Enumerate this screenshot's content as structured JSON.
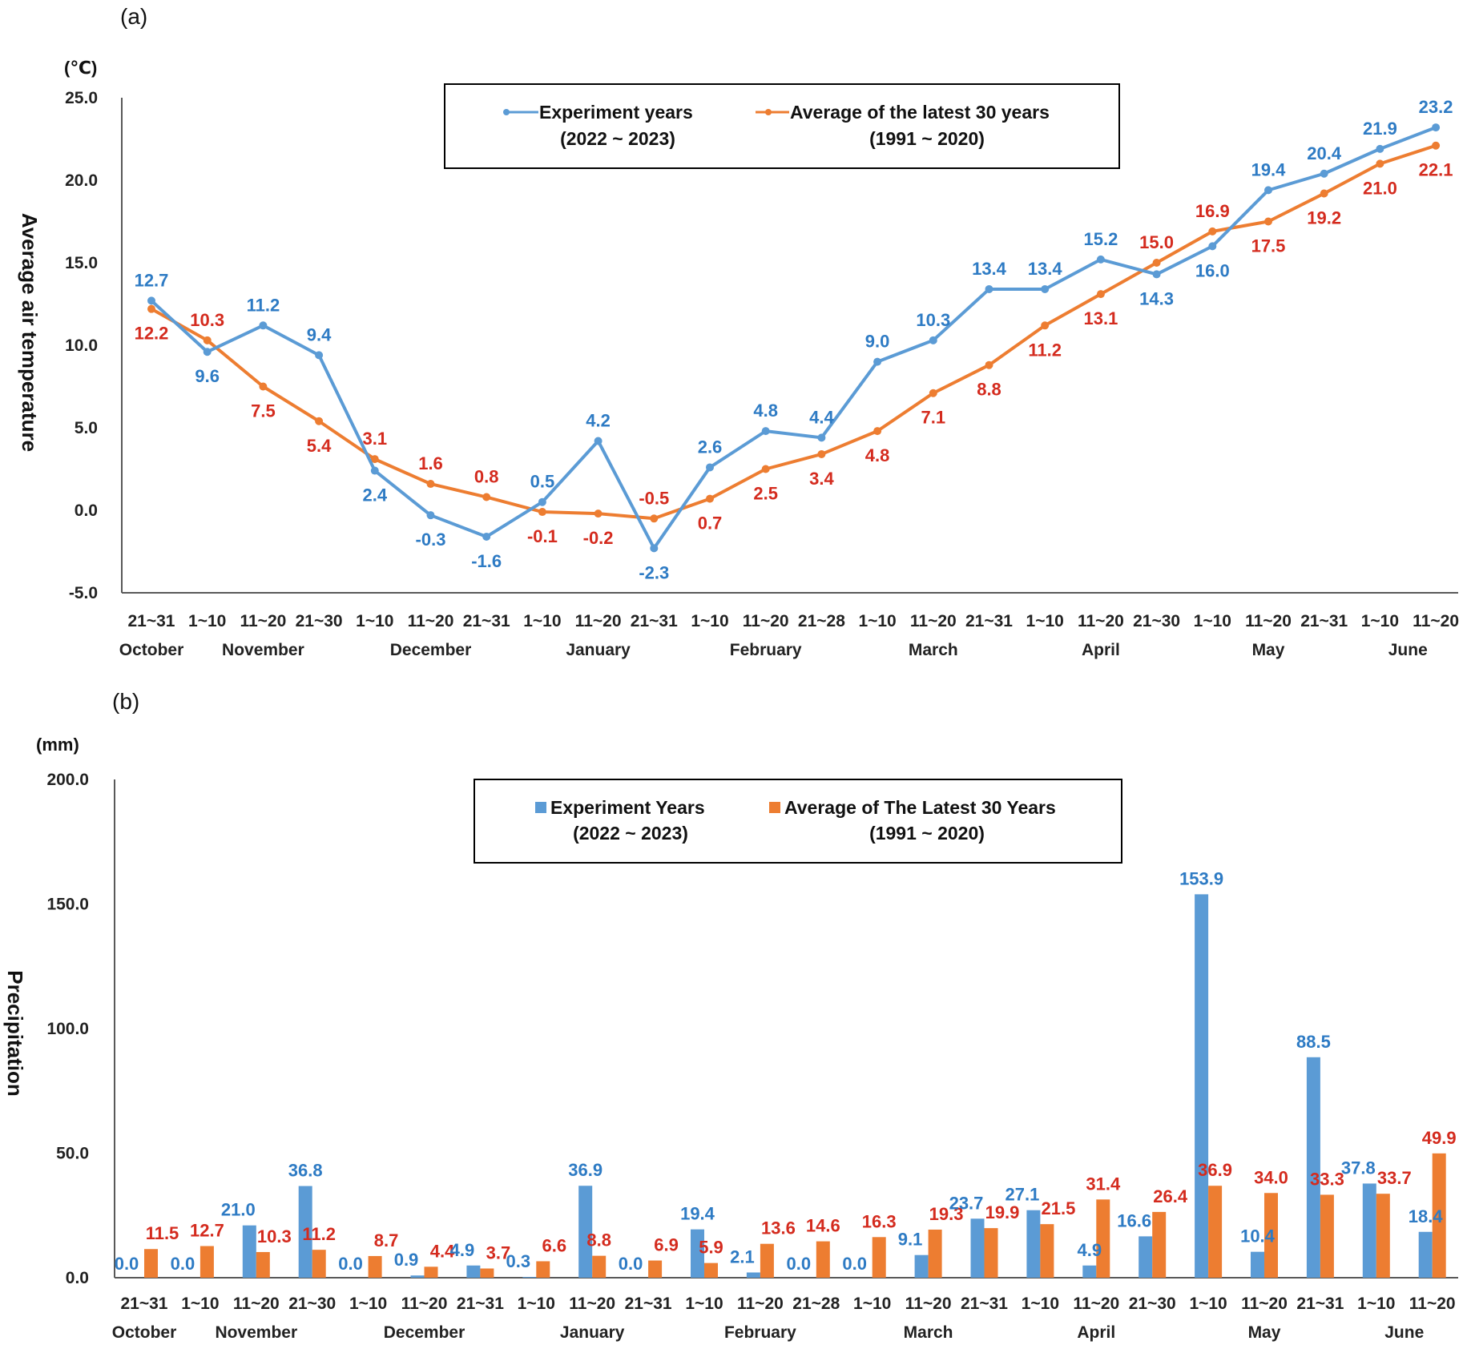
{
  "colors": {
    "exp": "#5b9bd5",
    "avg": "#ed7d31",
    "exp_label": "#2e7bc4",
    "avg_label": "#d42b1e",
    "axis": "#595959"
  },
  "x_categories": [
    "21~31",
    "1~10",
    "11~20",
    "21~30",
    "1~10",
    "11~20",
    "21~31",
    "1~10",
    "11~20",
    "21~31",
    "1~10",
    "11~20",
    "21~28",
    "1~10",
    "11~20",
    "21~31",
    "1~10",
    "11~20",
    "21~30",
    "1~10",
    "11~20",
    "21~31",
    "1~10",
    "11~20"
  ],
  "chart_data": [
    {
      "id": "a",
      "type": "line",
      "panel_label": "(a)",
      "unit": "(℃)",
      "ylabel": "Average air temperature",
      "ylim": [
        -5.0,
        25.0
      ],
      "yticks": [
        "-5.0",
        "0.0",
        "5.0",
        "10.0",
        "15.0",
        "20.0",
        "25.0"
      ],
      "months": [
        {
          "name": "October",
          "start": 0,
          "end": 0
        },
        {
          "name": "November",
          "start": 1,
          "end": 3
        },
        {
          "name": "December",
          "start": 4,
          "end": 6
        },
        {
          "name": "January",
          "start": 7,
          "end": 9
        },
        {
          "name": "February",
          "start": 10,
          "end": 12
        },
        {
          "name": "March",
          "start": 13,
          "end": 15
        },
        {
          "name": "April",
          "start": 16,
          "end": 18
        },
        {
          "name": "May",
          "start": 19,
          "end": 21
        },
        {
          "name": "June",
          "start": 22,
          "end": 23
        }
      ],
      "legend": {
        "items": [
          {
            "name": "Experiment years",
            "sub": "(2022 ~ 2023)"
          },
          {
            "name": "Average of the latest 30 years",
            "sub": "(1991 ~ 2020)"
          }
        ]
      },
      "series": [
        {
          "name": "Experiment years",
          "values": [
            12.7,
            9.6,
            11.2,
            9.4,
            2.4,
            -0.3,
            -1.6,
            0.5,
            4.2,
            -2.3,
            2.6,
            4.8,
            4.4,
            9.0,
            10.3,
            13.4,
            13.4,
            15.2,
            14.3,
            16.0,
            19.4,
            20.4,
            21.9,
            23.2
          ]
        },
        {
          "name": "Average of the latest 30 years",
          "values": [
            12.2,
            10.3,
            7.5,
            5.4,
            3.1,
            1.6,
            0.8,
            -0.1,
            -0.2,
            -0.5,
            0.7,
            2.5,
            3.4,
            4.8,
            7.1,
            8.8,
            11.2,
            13.1,
            15.0,
            16.9,
            17.5,
            19.2,
            21.0,
            22.1
          ]
        }
      ]
    },
    {
      "id": "b",
      "type": "bar",
      "panel_label": "(b)",
      "unit": "(mm)",
      "ylabel": "Precipitation",
      "ylim": [
        0.0,
        200.0
      ],
      "yticks": [
        "0.0",
        "50.0",
        "100.0",
        "150.0",
        "200.0"
      ],
      "months": [
        {
          "name": "October",
          "start": 0,
          "end": 0
        },
        {
          "name": "November",
          "start": 1,
          "end": 3
        },
        {
          "name": "December",
          "start": 4,
          "end": 6
        },
        {
          "name": "January",
          "start": 7,
          "end": 9
        },
        {
          "name": "February",
          "start": 10,
          "end": 12
        },
        {
          "name": "March",
          "start": 13,
          "end": 15
        },
        {
          "name": "April",
          "start": 16,
          "end": 18
        },
        {
          "name": "May",
          "start": 19,
          "end": 21
        },
        {
          "name": "June",
          "start": 22,
          "end": 23
        }
      ],
      "legend": {
        "items": [
          {
            "name": "Experiment Years",
            "sub": "(2022 ~ 2023)"
          },
          {
            "name": "Average of The Latest 30 Years",
            "sub": "(1991 ~ 2020)"
          }
        ]
      },
      "series": [
        {
          "name": "Experiment Years",
          "values": [
            0.0,
            0.0,
            21.0,
            36.8,
            0.0,
            0.9,
            4.9,
            0.3,
            36.9,
            0.0,
            19.4,
            2.1,
            0.0,
            0.0,
            9.1,
            23.7,
            27.1,
            4.9,
            16.6,
            153.9,
            10.4,
            88.5,
            37.8,
            18.4
          ]
        },
        {
          "name": "Average of The Latest 30 Years",
          "values": [
            11.5,
            12.7,
            10.3,
            11.2,
            8.7,
            4.4,
            3.7,
            6.6,
            8.8,
            6.9,
            5.9,
            13.6,
            14.6,
            16.3,
            19.3,
            19.9,
            21.5,
            31.4,
            26.4,
            36.9,
            34.0,
            33.3,
            33.7,
            49.9
          ]
        }
      ]
    }
  ]
}
